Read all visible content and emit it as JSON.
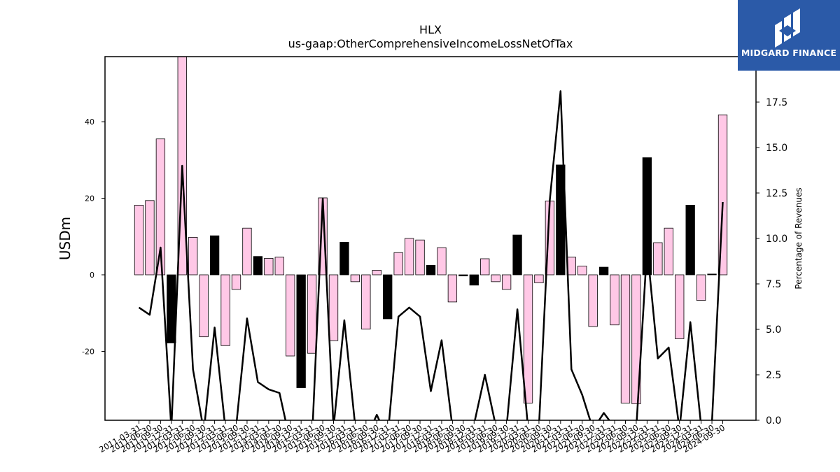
{
  "logo": {
    "text": "MIDGARD FINANCE",
    "background": "#2b5aa8",
    "icon": "midgard-m-logo-icon"
  },
  "chart_data": {
    "type": "bar+line",
    "title": "HLX",
    "subtitle": "us-gaap:OtherComprehensiveIncomeLossNetOfTax",
    "ylabel": "USDm",
    "y2label": "Percentage of Revenues",
    "ylim": [
      -38,
      57
    ],
    "y2lim": [
      0,
      20
    ],
    "yticks": [
      -20,
      0,
      20,
      40
    ],
    "y2ticks": [
      0.0,
      2.5,
      5.0,
      7.5,
      10.0,
      12.5,
      15.0,
      17.5
    ],
    "colors": {
      "positive": "#ffc8e6",
      "negative": "#000000",
      "line": "#000000"
    },
    "categories": [
      "2011-03-31",
      "2011-06-30",
      "2011-09-30",
      "2011-12-31",
      "2012-03-31",
      "2012-06-30",
      "2012-09-30",
      "2012-12-31",
      "2013-03-31",
      "2013-06-30",
      "2013-09-30",
      "2013-12-31",
      "2014-03-31",
      "2014-06-30",
      "2014-09-30",
      "2014-12-31",
      "2015-03-31",
      "2015-06-30",
      "2015-09-30",
      "2015-12-31",
      "2016-03-31",
      "2016-06-30",
      "2016-09-30",
      "2016-12-31",
      "2017-03-31",
      "2017-06-30",
      "2017-09-30",
      "2017-12-31",
      "2018-03-31",
      "2018-06-30",
      "2018-09-30",
      "2018-12-31",
      "2019-03-31",
      "2019-06-30",
      "2019-09-30",
      "2019-12-31",
      "2020-03-31",
      "2020-06-30",
      "2020-09-30",
      "2020-12-31",
      "2021-03-31",
      "2021-06-30",
      "2021-09-30",
      "2021-12-31",
      "2022-03-31",
      "2022-06-30",
      "2022-09-30",
      "2022-12-31",
      "2023-03-31",
      "2023-06-30",
      "2023-09-30",
      "2023-12-31",
      "2024-03-31",
      "2024-06-30",
      "2024-09-30"
    ],
    "xtick_labels": [
      "2011-03-31",
      "2011-06-30",
      "2011-09-30",
      "2011-12-31",
      "2012-03-31",
      "2012-06-30",
      "2012-09-30",
      "2012-12-31",
      "2013-03-31",
      "2013-06-30",
      "2013-09-30",
      "2013-12-31",
      "2014-03-31",
      "2014-06-30",
      "2014-09-30",
      "2014-12-31",
      "2015-03-31",
      "2015-06-30",
      "2015-09-30",
      "2015-12-31",
      "2016-03-31",
      "2016-06-30",
      "2016-09-30",
      "2016-12-31",
      "2017-03-31",
      "2017-06-30",
      "2017-09-30",
      "2017-12-31",
      "2018-03-31",
      "2018-06-30",
      "2018-09-30",
      "2018-12-31",
      "2019-03-31",
      "2019-06-30",
      "2019-09-30",
      "2019-12-31",
      "2020-03-31",
      "2020-06-30",
      "2020-09-30",
      "2020-12-31",
      "2021-03-31",
      "2021-06-30",
      "2021-09-30",
      "2021-12-31",
      "2022-03-31",
      "2022-06-30",
      "2022-09-30",
      "2022-12-31",
      "2023-03-31",
      "2023-06-30",
      "2023-09-30",
      "2023-12-31",
      "2024-03-31",
      "2024-06-30",
      "2024-09-30"
    ],
    "bars": {
      "values": [
        18.2,
        19.4,
        35.5,
        -17.8,
        57.0,
        9.8,
        -16.2,
        10.2,
        -18.5,
        -3.8,
        12.2,
        4.8,
        4.3,
        4.6,
        -21.2,
        -29.5,
        -20.5,
        20.1,
        -17.2,
        8.5,
        -1.8,
        -14.2,
        1.2,
        -11.5,
        5.8,
        9.5,
        9.1,
        2.5,
        7.1,
        -7.1,
        -0.3,
        -2.7,
        4.2,
        -1.8,
        -3.8,
        10.4,
        -33.5,
        -2.1,
        19.3,
        28.7,
        4.6,
        2.3,
        -13.5,
        2.0,
        -13.1,
        -33.5,
        -33.7,
        30.6,
        8.4,
        12.2,
        -16.7,
        18.2,
        -6.7,
        0.2,
        41.8
      ],
      "fills": [
        "pink",
        "pink",
        "pink",
        "black",
        "pink",
        "pink",
        "pink",
        "black",
        "pink",
        "pink",
        "pink",
        "black",
        "pink",
        "pink",
        "pink",
        "black",
        "pink",
        "pink",
        "pink",
        "black",
        "pink",
        "pink",
        "pink",
        "black",
        "pink",
        "pink",
        "pink",
        "black",
        "pink",
        "pink",
        "black",
        "black",
        "pink",
        "pink",
        "pink",
        "black",
        "pink",
        "pink",
        "pink",
        "black",
        "pink",
        "pink",
        "pink",
        "black",
        "pink",
        "pink",
        "pink",
        "black",
        "pink",
        "pink",
        "pink",
        "black",
        "pink",
        "black",
        "pink"
      ]
    },
    "line": {
      "name": "Percentage of Revenues",
      "values": [
        6.2,
        5.8,
        9.5,
        -0.5,
        14.0,
        2.8,
        -0.6,
        5.1,
        -0.5,
        -0.3,
        5.6,
        2.1,
        1.7,
        1.5,
        -1.2,
        -1.0,
        -1.2,
        12.2,
        -0.4,
        5.5,
        -0.3,
        -1.0,
        0.3,
        -1.0,
        5.7,
        6.2,
        5.7,
        1.6,
        4.4,
        -0.4,
        -0.1,
        -0.2,
        2.5,
        -0.3,
        -0.4,
        6.1,
        -0.5,
        -0.4,
        12.1,
        18.1,
        2.8,
        1.4,
        -0.5,
        0.4,
        -0.4,
        -0.5,
        -0.5,
        9.5,
        3.4,
        4.0,
        -0.5,
        5.4,
        -0.3,
        -0.1,
        12.0
      ]
    },
    "grid": false
  }
}
